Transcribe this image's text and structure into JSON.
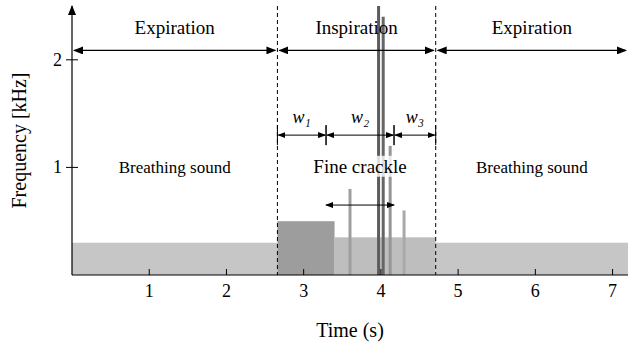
{
  "chart_data": {
    "type": "spectrogram",
    "x_label": "Time (s)",
    "y_label": "Frequency [kHz]",
    "xlim": [
      0,
      7.2
    ],
    "ylim": [
      0,
      2.5
    ],
    "xticks": [
      1,
      2,
      3,
      4,
      5,
      6,
      7
    ],
    "yticks": [
      1,
      2
    ],
    "color": "#505050",
    "phases": [
      {
        "label": "Expiration",
        "t0": 0,
        "t1": 2.66,
        "sound": "Breathing sound"
      },
      {
        "label": "Inspiration",
        "t0": 2.66,
        "t1": 4.71
      },
      {
        "label": "Expiration",
        "t0": 4.71,
        "t1": 7.2,
        "sound": "Breathing sound"
      }
    ],
    "windows": [
      {
        "label": "w₁",
        "t0": 2.66,
        "t1": 3.29
      },
      {
        "label": "w₂",
        "t0": 3.29,
        "t1": 4.17
      },
      {
        "label": "w₃",
        "t0": 4.17,
        "t1": 4.71
      }
    ],
    "crackle_span": {
      "label": "Fine crackle",
      "t0": 3.29,
      "t1": 4.17
    },
    "bands": [
      {
        "t0": 0,
        "t1": 2.66,
        "f0": 0,
        "f1": 0.3,
        "intensity": 0.35
      },
      {
        "t0": 2.66,
        "t1": 3.4,
        "f0": 0,
        "f1": 0.5,
        "intensity": 0.6
      },
      {
        "t0": 3.4,
        "t1": 4.71,
        "f0": 0,
        "f1": 0.35,
        "intensity": 0.4
      },
      {
        "t0": 4.71,
        "t1": 7.2,
        "f0": 0,
        "f1": 0.3,
        "intensity": 0.35
      }
    ],
    "crackles": [
      {
        "t": 3.6,
        "fmax": 0.8,
        "intensity": 0.5
      },
      {
        "t": 3.97,
        "fmax": 2.5,
        "intensity": 0.85
      },
      {
        "t": 4.03,
        "fmax": 2.4,
        "intensity": 0.8
      },
      {
        "t": 4.12,
        "fmax": 1.2,
        "intensity": 0.55
      },
      {
        "t": 4.3,
        "fmax": 0.6,
        "intensity": 0.45
      }
    ]
  }
}
